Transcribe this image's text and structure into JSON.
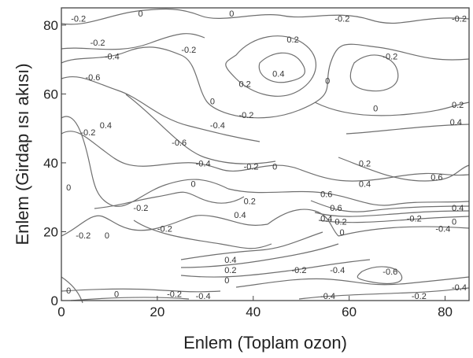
{
  "chart_data": {
    "type": "contour",
    "xlabel": "Enlem (Toplam ozon)",
    "ylabel": "Enlem (Girdap ısı akısı)",
    "xlim": [
      0,
      85
    ],
    "ylim": [
      0,
      85
    ],
    "xticks": [
      0,
      20,
      40,
      60,
      80
    ],
    "yticks": [
      0,
      20,
      40,
      60,
      80
    ],
    "grid": false,
    "contour_labels": [
      {
        "text": "-0.2",
        "x": 2,
        "y": 81
      },
      {
        "text": "0",
        "x": 16,
        "y": 83.5
      },
      {
        "text": "0",
        "x": 35,
        "y": 83.5
      },
      {
        "text": "-0.2",
        "x": 57,
        "y": 81
      },
      {
        "text": "-0.2",
        "x": 82,
        "y": 81
      },
      {
        "text": "-0.2",
        "x": 6,
        "y": 74
      },
      {
        "text": "-0.4",
        "x": 9,
        "y": 70
      },
      {
        "text": "-0.2",
        "x": 25,
        "y": 72
      },
      {
        "text": "0.2",
        "x": 47,
        "y": 75
      },
      {
        "text": "0.4",
        "x": 44,
        "y": 65
      },
      {
        "text": "-0.2",
        "x": 67,
        "y": 70
      },
      {
        "text": "-0.6",
        "x": 5,
        "y": 64
      },
      {
        "text": "0.2",
        "x": 37,
        "y": 62
      },
      {
        "text": "0",
        "x": 55,
        "y": 63
      },
      {
        "text": "0",
        "x": 31,
        "y": 57
      },
      {
        "text": "-0.2",
        "x": 37,
        "y": 53
      },
      {
        "text": "0",
        "x": 65,
        "y": 55
      },
      {
        "text": "0.2",
        "x": 82,
        "y": 56
      },
      {
        "text": "0.4",
        "x": 8,
        "y": 50
      },
      {
        "text": "-0.2",
        "x": 4,
        "y": 48
      },
      {
        "text": "-0.4",
        "x": 31,
        "y": 50
      },
      {
        "text": "0.4",
        "x": 81,
        "y": 51
      },
      {
        "text": "-0.6",
        "x": 23,
        "y": 45
      },
      {
        "text": "-0.4",
        "x": 28,
        "y": 39
      },
      {
        "text": "-0.2",
        "x": 38,
        "y": 38
      },
      {
        "text": "0",
        "x": 44,
        "y": 38
      },
      {
        "text": "0.2",
        "x": 62,
        "y": 39
      },
      {
        "text": "0.6",
        "x": 77,
        "y": 35
      },
      {
        "text": "0",
        "x": 1,
        "y": 32
      },
      {
        "text": "0",
        "x": 27,
        "y": 33
      },
      {
        "text": "0.4",
        "x": 62,
        "y": 33
      },
      {
        "text": "0.6",
        "x": 54,
        "y": 30
      },
      {
        "text": "0.2",
        "x": 38,
        "y": 28
      },
      {
        "text": "-0.2",
        "x": 15,
        "y": 26
      },
      {
        "text": "0.6",
        "x": 56,
        "y": 26
      },
      {
        "text": "0.4",
        "x": 36,
        "y": 24
      },
      {
        "text": "0.4",
        "x": 54,
        "y": 23
      },
      {
        "text": "0.2",
        "x": 57,
        "y": 22
      },
      {
        "text": "-0.2",
        "x": 72,
        "y": 23
      },
      {
        "text": "0.4",
        "x": 83,
        "y": 26
      },
      {
        "text": "0",
        "x": 85,
        "y": 22
      },
      {
        "text": "-0.2",
        "x": 20,
        "y": 20
      },
      {
        "text": "0",
        "x": 58,
        "y": 19
      },
      {
        "text": "-0.4",
        "x": 78,
        "y": 20
      },
      {
        "text": "-0.2",
        "x": 3,
        "y": 18
      },
      {
        "text": "0",
        "x": 9,
        "y": 18
      },
      {
        "text": "0.4",
        "x": 34,
        "y": 11
      },
      {
        "text": "0.2",
        "x": 34,
        "y": 8
      },
      {
        "text": "-0.2",
        "x": 48,
        "y": 8
      },
      {
        "text": "-0.4",
        "x": 56,
        "y": 8
      },
      {
        "text": "-0.6",
        "x": 67,
        "y": 7.5
      },
      {
        "text": "0",
        "x": 34,
        "y": 5
      },
      {
        "text": "0",
        "x": 1,
        "y": 2
      },
      {
        "text": "0",
        "x": 11,
        "y": 1
      },
      {
        "text": "-0.2",
        "x": 22,
        "y": 1
      },
      {
        "text": "-0.4",
        "x": 28,
        "y": 0
      },
      {
        "text": "-0.4",
        "x": 54,
        "y": 0
      },
      {
        "text": "-0.2",
        "x": 73,
        "y": 0
      },
      {
        "text": "-0.4",
        "x": 82,
        "y": 3
      }
    ]
  }
}
